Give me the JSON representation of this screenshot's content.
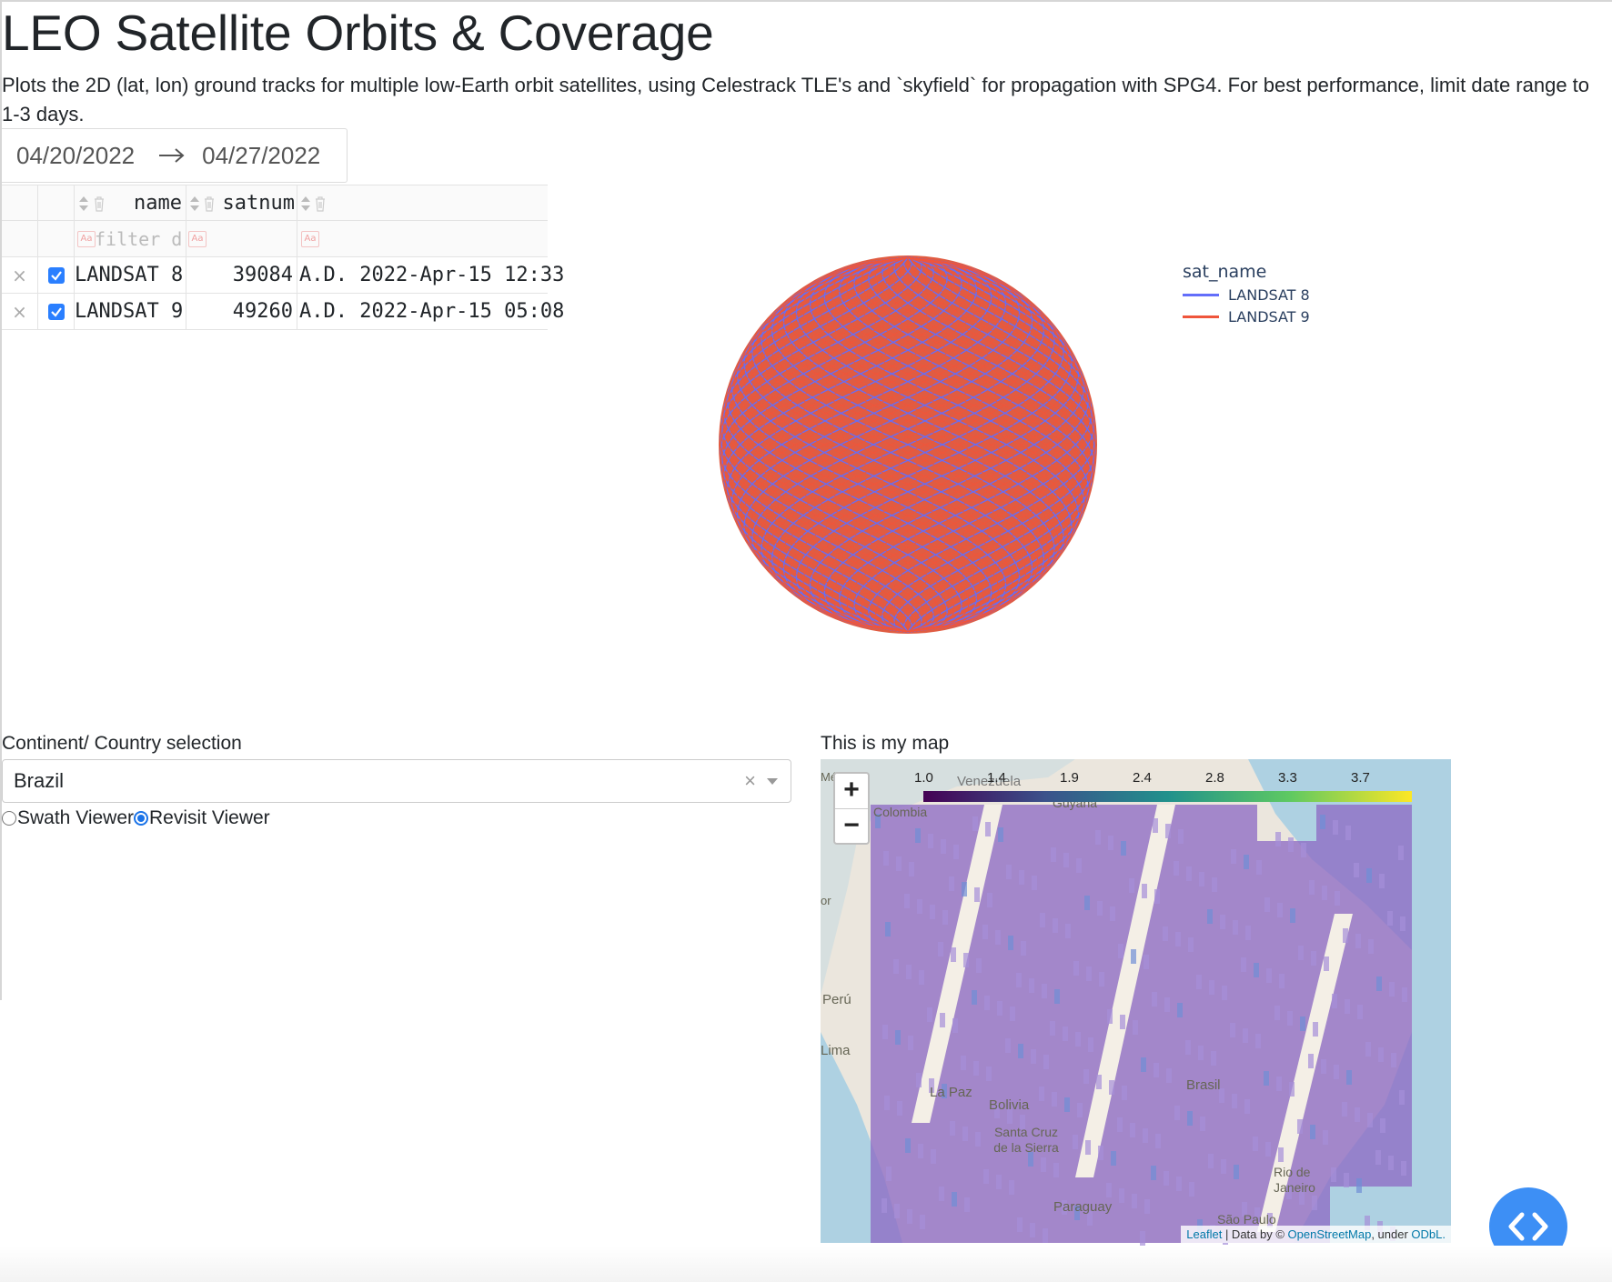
{
  "page": {
    "title": "LEO Satellite Orbits & Coverage",
    "description": "Plots the 2D (lat, lon) ground tracks for multiple low-Earth orbit satellites, using Celestrack TLE's and `skyfield` for propagation with SPG4. For best performance, limit date range to 1-3 days."
  },
  "date_range": {
    "start": "04/20/2022",
    "end": "04/27/2022"
  },
  "table": {
    "columns": [
      "name",
      "satnum"
    ],
    "filter_placeholder": "filter d",
    "filter_icon_text": "Aa",
    "delete_glyph": "×",
    "rows": [
      {
        "name": "LANDSAT 8",
        "satnum": "39084",
        "epoch": "A.D. 2022-Apr-15 12:33",
        "selected": true
      },
      {
        "name": "LANDSAT 9",
        "satnum": "49260",
        "epoch": "A.D. 2022-Apr-15 05:08",
        "selected": true
      }
    ]
  },
  "chart_data": {
    "type": "line",
    "title": "",
    "legend_title": "sat_name",
    "legend_position": "top-right",
    "projection": "orthographic globe",
    "series": [
      {
        "name": "LANDSAT 8",
        "color": "#636efa"
      },
      {
        "name": "LANDSAT 9",
        "color": "#ef553b"
      }
    ]
  },
  "controls": {
    "selection_label": "Continent/ Country selection",
    "selection_value": "Brazil",
    "clear_glyph": "×",
    "radio_options": [
      "Swath Viewer",
      "Revisit Viewer"
    ],
    "radio_selected": "Revisit Viewer"
  },
  "map": {
    "title": "This is my map",
    "zoom_in": "+",
    "zoom_out": "−",
    "colorbar_ticks": [
      "1.0",
      "1.4",
      "1.9",
      "2.4",
      "2.8",
      "3.3",
      "3.7"
    ],
    "place_labels": [
      "Venezuela",
      "Guyana",
      "Colombia",
      "Perú",
      "Lima",
      "La Paz",
      "Bolivia",
      "Santa Cruz de la Sierra",
      "Brasil",
      "Paraguay",
      "Rio de Janeiro",
      "São Paulo",
      "Mé",
      "or"
    ],
    "attribution": {
      "leaflet": "Leaflet",
      "middle": " | Data by © ",
      "osm": "OpenStreetMap",
      "under": ", under ",
      "odbl": "ODbL."
    },
    "colors": {
      "overlay": "#8e6bc4",
      "gap": "#f4efe6",
      "ocean": "#aed1e2"
    }
  },
  "fab": {
    "icon": "code-icon",
    "color": "#3d8ff5"
  }
}
